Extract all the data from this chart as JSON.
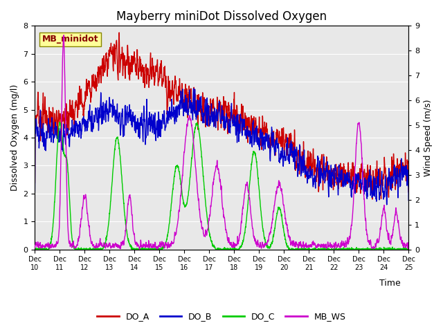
{
  "title": "Mayberry miniDot Dissolved Oxygen",
  "ylabel_left": "Dissolved Oxygen (mg/l)",
  "ylabel_right": "Wind Speed (m/s)",
  "xlabel": "Time",
  "ylim_left": [
    0.0,
    8.0
  ],
  "ylim_right": [
    0.0,
    9.0
  ],
  "yticks_left": [
    0.0,
    1.0,
    2.0,
    3.0,
    4.0,
    5.0,
    6.0,
    7.0,
    8.0
  ],
  "yticks_right": [
    0.0,
    1.0,
    2.0,
    3.0,
    4.0,
    5.0,
    6.0,
    7.0,
    8.0,
    9.0
  ],
  "xtick_labels": [
    "Dec 10",
    "Dec 11",
    "Dec 12",
    "Dec 13",
    "Dec 14",
    "Dec 15",
    "Dec 16",
    "Dec 17",
    "Dec 18",
    "Dec 19",
    "Dec 20",
    "Dec 21",
    "Dec 22",
    "Dec 23",
    "Dec 24",
    "Dec 25"
  ],
  "line_colors": {
    "DO_A": "#cc0000",
    "DO_B": "#0000cc",
    "DO_C": "#00cc00",
    "MB_WS": "#cc00cc"
  },
  "line_width": 1.0,
  "background_color": "#e8e8e8",
  "legend_box_color": "#ffff99",
  "legend_box_label": "MB_minidot",
  "title_fontsize": 12,
  "axis_label_fontsize": 9,
  "tick_fontsize": 8,
  "legend_fontsize": 9
}
